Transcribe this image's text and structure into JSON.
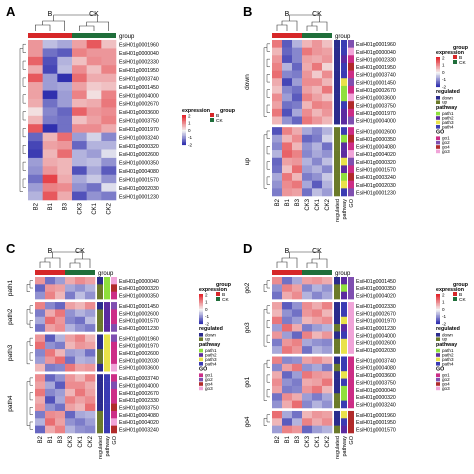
{
  "colors": {
    "B": "#d62728",
    "CK": "#1f6e3a",
    "scale": [
      "#1a1aa6",
      "#f4f4f4",
      "#e3242b"
    ],
    "down": "#2b2b8c",
    "up": "#6b7a2a",
    "path1": "#8fe03d",
    "path2": "#5b2aa0",
    "path3": "#e9e24a",
    "path4": "#3b3bb3",
    "go1": "#cc2d86",
    "go2": "#7f4fb0",
    "go4": "#b02a2a",
    "go3": "#f0a4d8"
  },
  "common": {
    "samples": [
      "B2",
      "B1",
      "B3",
      "CK3",
      "CK1",
      "CK2"
    ],
    "anno_cols": [
      "regulated",
      "pathway",
      "GO"
    ],
    "group_title": "group",
    "group_B": "B",
    "group_CK": "CK",
    "expression_title": "expression",
    "ticks": [
      "2",
      "1",
      "0",
      "-1",
      "-2"
    ],
    "regulated_title": "regulated",
    "pathway_title": "pathway",
    "go_title": "GO"
  },
  "panels": [
    {
      "letter": "A",
      "genes": [
        "EsiH01g0001960",
        "EsiH01g0000040",
        "EsiH01g0002330",
        "EsiH01g0001950",
        "EsiH01g0003740",
        "EsiH01g0001450",
        "EsiH01g0004000",
        "EsiH01g0002670",
        "EsiH01g0003600",
        "EsiH01g0003750",
        "EsiH01g0001970",
        "EsiH01g0003240",
        "EsiH01g0000320",
        "EsiH01g0002600",
        "EsiH01g0000350",
        "EsiH01g0004080",
        "EsiH01g0001570",
        "EsiH01g0002030",
        "EsiH01g0001230"
      ],
      "splits": [],
      "anno": false,
      "hm": [
        [
          0.9,
          -0.5,
          -0.7,
          0.8,
          1.5,
          0.5
        ],
        [
          0.9,
          -1.2,
          -1.4,
          1.1,
          0.9,
          0.9
        ],
        [
          1.4,
          -1.5,
          -0.6,
          0.5,
          1.0,
          0.9
        ],
        [
          0.7,
          -1.6,
          -0.5,
          1.0,
          0.5,
          1.1
        ],
        [
          1.5,
          -0.8,
          -1.8,
          1.3,
          0.7,
          0.7
        ],
        [
          0.8,
          -0.8,
          -0.7,
          0.8,
          0.4,
          0.5
        ],
        [
          0.8,
          -1.8,
          -0.8,
          1.1,
          0.2,
          1.1
        ],
        [
          0.7,
          -1.2,
          -0.8,
          0.6,
          0.7,
          1.2
        ],
        [
          0.2,
          -1.0,
          -1.3,
          1.4,
          0.9,
          1.0
        ],
        [
          0.6,
          -1.1,
          -1.2,
          0.5,
          0.8,
          1.1
        ],
        [
          1.5,
          -1.8,
          -1.2,
          1.0,
          1.0,
          0.7
        ],
        [
          -1.3,
          0.6,
          1.3,
          -0.8,
          -0.3,
          -1.0
        ],
        [
          -1.6,
          0.8,
          0.9,
          -1.3,
          -0.6,
          -0.6
        ],
        [
          -1.7,
          0.6,
          1.3,
          -0.6,
          -0.8,
          -0.2
        ],
        [
          -0.8,
          0.7,
          0.6,
          -0.6,
          -0.5,
          -0.9
        ],
        [
          -0.9,
          0.9,
          0.6,
          -1.5,
          -0.7,
          -1.4
        ],
        [
          -1.2,
          1.7,
          0.7,
          -0.7,
          -0.4,
          -0.9
        ],
        [
          -0.8,
          1.1,
          1.0,
          -0.9,
          -1.2,
          -0.2
        ],
        [
          -0.6,
          1.5,
          0.7,
          -1.5,
          -0.9,
          -1.1
        ]
      ]
    },
    {
      "letter": "B",
      "genes": [
        "EsiH01g0001960",
        "EsiH01g0000040",
        "EsiH01g0002330",
        "EsiH01g0001950",
        "EsiH01g0003740",
        "EsiH01g0001450",
        "EsiH01g0002670",
        "EsiH01g0003600",
        "EsiH01g0003750",
        "EsiH01g0001970",
        "EsiH01g0004000",
        "EsiH01g0002600",
        "EsiH01g0000350",
        "EsiH01g0004080",
        "EsiH01g0004020",
        "EsiH01g0000320",
        "EsiH01g0001570",
        "EsiH01g0003240",
        "EsiH01g0002030",
        "EsiH01g0001230"
      ],
      "splits": [
        "down",
        "up"
      ],
      "split_sizes": [
        11,
        9
      ],
      "anno": true,
      "reg": [
        "down",
        "down",
        "down",
        "down",
        "down",
        "down",
        "down",
        "down",
        "down",
        "down",
        "down",
        "up",
        "up",
        "up",
        "up",
        "up",
        "up",
        "up",
        "up",
        "up"
      ],
      "pw": [
        "path4",
        "path4",
        "path2",
        "path4",
        "path4",
        "path3",
        "path1",
        "path1",
        "path4",
        "path2",
        "path2",
        "path4",
        "path1",
        "path2",
        "path2",
        "path3",
        "path2",
        "path1",
        "path3",
        "path4"
      ],
      "go": [
        "go2",
        "go3",
        "go1",
        "go4",
        "go1",
        "go2",
        "go1",
        "go3",
        "go4",
        "go1",
        "go2",
        "go1",
        "go4",
        "go1",
        "go3",
        "go2",
        "go1",
        "go4",
        "go1",
        "go2"
      ],
      "hm": [
        [
          1.2,
          -1.4,
          -0.6,
          0.6,
          0.9,
          0.5
        ],
        [
          0.6,
          -1.3,
          -1.0,
          1.2,
          0.9,
          0.8
        ],
        [
          0.9,
          -1.5,
          -1.0,
          0.8,
          0.7,
          0.9
        ],
        [
          1.1,
          -0.6,
          -1.3,
          0.7,
          1.2,
          0.3
        ],
        [
          1.3,
          -1.0,
          -1.1,
          0.9,
          0.4,
          1.0
        ],
        [
          0.7,
          -1.6,
          -0.8,
          1.0,
          1.0,
          0.6
        ],
        [
          0.5,
          -1.0,
          -1.2,
          0.8,
          0.6,
          1.2
        ],
        [
          1.0,
          -0.8,
          -1.4,
          1.1,
          0.8,
          0.5
        ],
        [
          0.8,
          -1.2,
          -1.1,
          0.6,
          1.1,
          1.0
        ],
        [
          1.2,
          -1.5,
          -0.7,
          1.0,
          0.6,
          0.9
        ],
        [
          0.6,
          -0.9,
          -1.3,
          1.2,
          0.9,
          0.6
        ],
        [
          -1.5,
          1.1,
          0.7,
          -0.7,
          -1.0,
          -0.6
        ],
        [
          -0.8,
          0.6,
          1.0,
          -1.3,
          -1.1,
          -0.3
        ],
        [
          -1.0,
          1.3,
          0.6,
          -0.9,
          -0.6,
          -1.2
        ],
        [
          -0.6,
          1.4,
          1.1,
          -1.0,
          -0.7,
          -0.9
        ],
        [
          -1.3,
          0.8,
          0.9,
          -0.6,
          -1.0,
          -0.5
        ],
        [
          -1.2,
          0.5,
          1.3,
          -0.8,
          -0.6,
          -1.0
        ],
        [
          -0.7,
          1.2,
          0.6,
          -1.1,
          -0.9,
          -0.4
        ],
        [
          -0.9,
          1.0,
          1.2,
          -0.7,
          -1.4,
          -0.6
        ],
        [
          -1.1,
          0.9,
          0.8,
          -1.2,
          -0.5,
          -0.8
        ]
      ]
    },
    {
      "letter": "C",
      "genes": [
        "EsiH01g0000040",
        "EsiH01g0000320",
        "EsiH01g0000350",
        "EsiH01g0001450",
        "EsiH01g0002600",
        "EsiH01g0001570",
        "EsiH01g0001230",
        "EsiH01g0001960",
        "EsiH01g0001970",
        "EsiH01g0002600",
        "EsiH01g0002030",
        "EsiH01g0003600",
        "EsiH01g0003740",
        "EsiH01g0004000",
        "EsiH01g0002670",
        "EsiH01g0002330",
        "EsiH01g0003750",
        "EsiH01g0004080",
        "EsiH01g0004020",
        "EsiH01g0003240"
      ],
      "splits": [
        "path1",
        "path2",
        "path3",
        "path4"
      ],
      "split_sizes": [
        3,
        4,
        5,
        8
      ],
      "anno": true,
      "reg": [
        "down",
        "up",
        "up",
        "down",
        "up",
        "up",
        "up",
        "down",
        "down",
        "up",
        "up",
        "down",
        "down",
        "down",
        "down",
        "down",
        "down",
        "up",
        "up",
        "up"
      ],
      "pw": [
        "path1",
        "path1",
        "path1",
        "path2",
        "path2",
        "path2",
        "path2",
        "path3",
        "path3",
        "path3",
        "path3",
        "path3",
        "path4",
        "path4",
        "path4",
        "path4",
        "path4",
        "path4",
        "path4",
        "path4"
      ],
      "go": [
        "go3",
        "go4",
        "go1",
        "go2",
        "go1",
        "go1",
        "go2",
        "go2",
        "go1",
        "go1",
        "go1",
        "go3",
        "go1",
        "go2",
        "go1",
        "go1",
        "go4",
        "go1",
        "go3",
        "go4"
      ],
      "hm": [
        [
          0.9,
          -1.2,
          -0.8,
          0.7,
          1.0,
          0.8
        ],
        [
          -1.3,
          0.9,
          0.8,
          -0.7,
          -0.9,
          -0.6
        ],
        [
          -0.9,
          1.1,
          0.6,
          -1.1,
          -0.5,
          -0.9
        ],
        [
          1.1,
          -1.0,
          -1.3,
          0.8,
          0.6,
          1.0
        ],
        [
          -1.1,
          0.7,
          1.2,
          -0.9,
          -0.6,
          -0.8
        ],
        [
          -0.7,
          1.3,
          0.9,
          -1.0,
          -1.2,
          -0.5
        ],
        [
          -1.2,
          0.8,
          1.0,
          -0.6,
          -0.9,
          -1.1
        ],
        [
          0.9,
          -1.4,
          -0.6,
          0.8,
          1.1,
          0.6
        ],
        [
          1.3,
          -0.9,
          -1.1,
          0.6,
          0.9,
          0.8
        ],
        [
          -1.0,
          1.2,
          0.6,
          -0.8,
          -0.7,
          -1.2
        ],
        [
          -0.8,
          0.9,
          1.3,
          -1.2,
          -0.6,
          -0.7
        ],
        [
          0.6,
          -1.1,
          -1.0,
          1.2,
          0.8,
          0.9
        ],
        [
          1.0,
          -1.3,
          -0.9,
          0.9,
          0.6,
          1.1
        ],
        [
          0.8,
          -0.7,
          -1.4,
          1.0,
          1.0,
          0.7
        ],
        [
          1.2,
          -1.0,
          -0.8,
          0.6,
          1.2,
          0.8
        ],
        [
          0.7,
          -1.5,
          -0.7,
          1.1,
          0.8,
          1.0
        ],
        [
          0.9,
          -0.9,
          -1.2,
          0.8,
          0.6,
          1.3
        ],
        [
          -1.1,
          1.0,
          0.9,
          -1.3,
          -0.7,
          -0.6
        ],
        [
          -0.6,
          1.3,
          0.8,
          -0.9,
          -1.1,
          -0.8
        ],
        [
          -1.3,
          0.7,
          1.1,
          -0.6,
          -0.9,
          -1.0
        ]
      ]
    },
    {
      "letter": "D",
      "genes": [
        "EsiH01g0001450",
        "EsiH01g0000350",
        "EsiH01g0004020",
        "EsiH01g0002330",
        "EsiH01g0002670",
        "EsiH01g0001970",
        "EsiH01g0001230",
        "EsiH01g0004000",
        "EsiH01g0002600",
        "EsiH01g0002030",
        "EsiH01g0003740",
        "EsiH01g0004080",
        "EsiH01g0003600",
        "EsiH01g0003750",
        "EsiH01g0000040",
        "EsiH01g0000320",
        "EsiH01g0003240",
        "EsiH01g0001960",
        "EsiH01g0001950",
        "EsiH01g0001570"
      ],
      "splits": [
        "go2",
        "go3",
        "go1",
        "go4"
      ],
      "split_sizes": [
        3,
        7,
        7,
        3
      ],
      "anno": true,
      "reg": [
        "down",
        "up",
        "up",
        "down",
        "down",
        "down",
        "up",
        "down",
        "up",
        "up",
        "down",
        "up",
        "down",
        "down",
        "down",
        "up",
        "up",
        "down",
        "down",
        "up"
      ],
      "pw": [
        "path2",
        "path1",
        "path2",
        "path4",
        "path4",
        "path3",
        "path2",
        "path4",
        "path3",
        "path3",
        "path4",
        "path4",
        "path3",
        "path4",
        "path1",
        "path1",
        "path4",
        "path3",
        "path4",
        "path2"
      ],
      "go": [
        "go2",
        "go2",
        "go2",
        "go3",
        "go3",
        "go3",
        "go3",
        "go3",
        "go3",
        "go3",
        "go1",
        "go1",
        "go1",
        "go1",
        "go1",
        "go1",
        "go1",
        "go4",
        "go4",
        "go4"
      ],
      "hm": [
        [
          1.0,
          -1.2,
          -0.7,
          0.8,
          0.9,
          0.7
        ],
        [
          -0.9,
          1.1,
          0.8,
          -1.0,
          -0.6,
          -0.9
        ],
        [
          -1.2,
          0.7,
          1.0,
          -0.6,
          -1.0,
          -0.7
        ],
        [
          0.8,
          -1.4,
          -0.9,
          1.0,
          0.7,
          1.1
        ],
        [
          0.6,
          -0.9,
          -1.2,
          0.9,
          1.1,
          0.6
        ],
        [
          1.2,
          -1.1,
          -0.8,
          0.6,
          0.8,
          1.0
        ],
        [
          -0.8,
          1.3,
          0.7,
          -1.1,
          -0.8,
          -0.6
        ],
        [
          0.9,
          -0.8,
          -1.3,
          1.1,
          0.6,
          0.9
        ],
        [
          -1.1,
          0.9,
          1.1,
          -0.7,
          -0.9,
          -1.0
        ],
        [
          -0.7,
          1.2,
          0.9,
          -1.2,
          -0.6,
          -0.8
        ],
        [
          1.1,
          -1.0,
          -0.9,
          0.8,
          1.0,
          0.7
        ],
        [
          -1.0,
          0.8,
          1.2,
          -0.9,
          -0.7,
          -1.1
        ],
        [
          0.7,
          -1.3,
          -0.8,
          1.2,
          0.9,
          0.8
        ],
        [
          1.0,
          -0.9,
          -1.1,
          0.7,
          0.8,
          1.2
        ],
        [
          0.8,
          -1.1,
          -1.0,
          0.9,
          1.2,
          0.6
        ],
        [
          -1.2,
          1.0,
          0.7,
          -0.8,
          -1.1,
          -0.7
        ],
        [
          -0.9,
          0.7,
          1.3,
          -1.0,
          -0.6,
          -0.9
        ],
        [
          1.3,
          -0.7,
          -1.2,
          0.6,
          0.9,
          0.8
        ],
        [
          0.6,
          -1.4,
          -0.6,
          1.1,
          0.7,
          1.0
        ],
        [
          -0.8,
          1.1,
          0.9,
          -1.3,
          -0.8,
          -0.6
        ]
      ]
    }
  ]
}
